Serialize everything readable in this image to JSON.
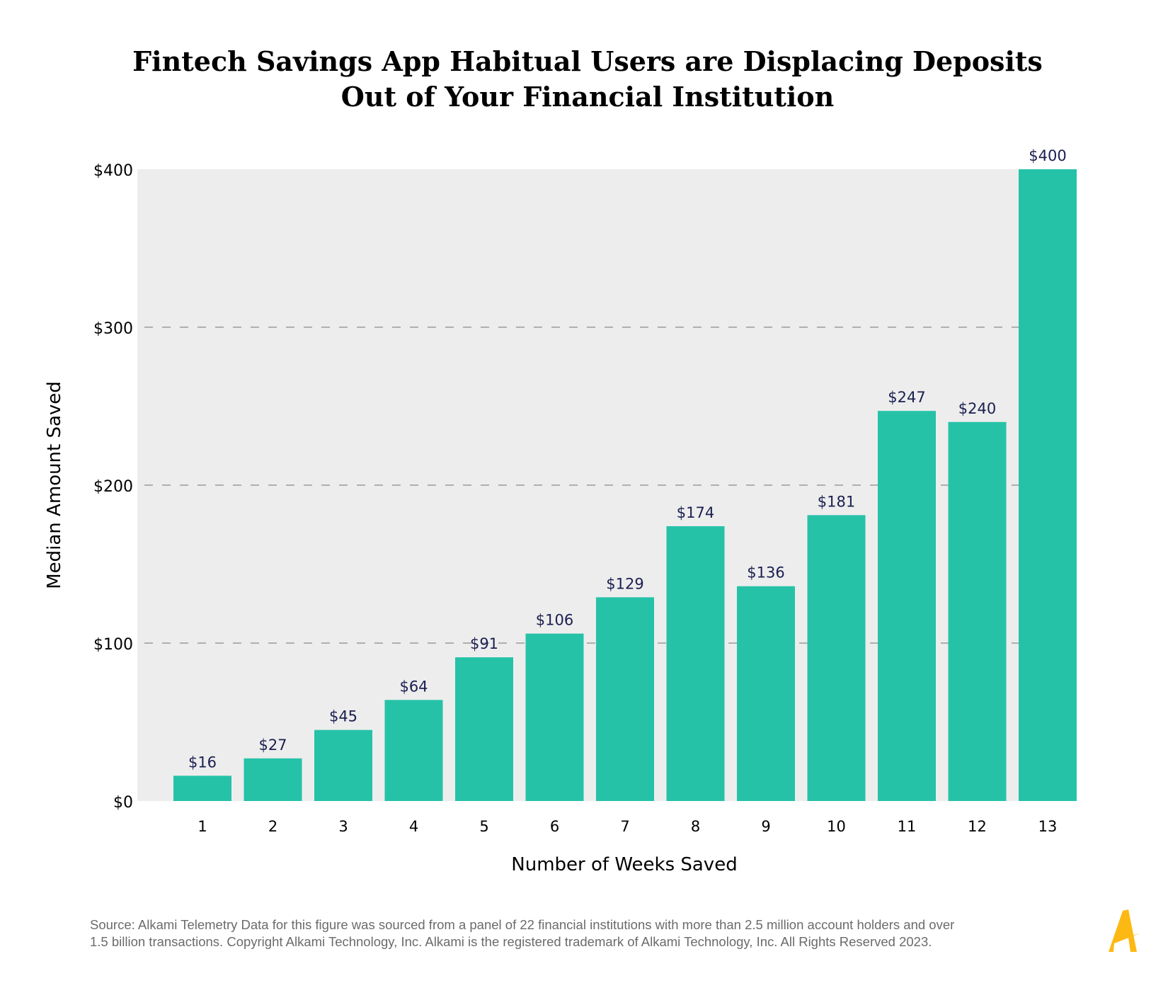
{
  "title_lines": [
    "Fintech Savings App Habitual Users are Displacing Deposits",
    "Out of Your Financial Institution"
  ],
  "chart_data": {
    "type": "bar",
    "title": "Fintech Savings App Habitual Users are Displacing Deposits Out of Your Financial Institution",
    "xlabel": "Number of Weeks Saved",
    "ylabel": "Median Amount Saved",
    "categories": [
      "1",
      "2",
      "3",
      "4",
      "5",
      "6",
      "7",
      "8",
      "9",
      "10",
      "11",
      "12",
      "13"
    ],
    "values": [
      16,
      27,
      45,
      64,
      91,
      106,
      129,
      174,
      136,
      181,
      247,
      240,
      400
    ],
    "data_labels": [
      "$16",
      "$27",
      "$45",
      "$64",
      "$91",
      "$106",
      "$129",
      "$174",
      "$136",
      "$181",
      "$247",
      "$240",
      "$400"
    ],
    "yticks": [
      0,
      100,
      200,
      300,
      400
    ],
    "ytick_labels": [
      "$0",
      "$100",
      "$200",
      "$300",
      "$400"
    ],
    "ylim": [
      0,
      400
    ],
    "grid": "horizontal dashed",
    "legend": "none",
    "colors": {
      "bar": "#26c2a8",
      "plot_bg": "#ededed",
      "data_label": "#1b1f50",
      "grid": "#8a8a8a"
    }
  },
  "footer": {
    "line1": "Source: Alkami Telemetry Data for this figure was sourced from a panel of 22 financial institutions with more than 2.5 million account holders and over",
    "line2": "1.5 billion transactions. Copyright Alkami Technology, Inc. Alkami is the registered trademark of Alkami Technology, Inc. All Rights Reserved 2023."
  },
  "logo": {
    "text": "Alkami",
    "color": "#fdb913"
  }
}
